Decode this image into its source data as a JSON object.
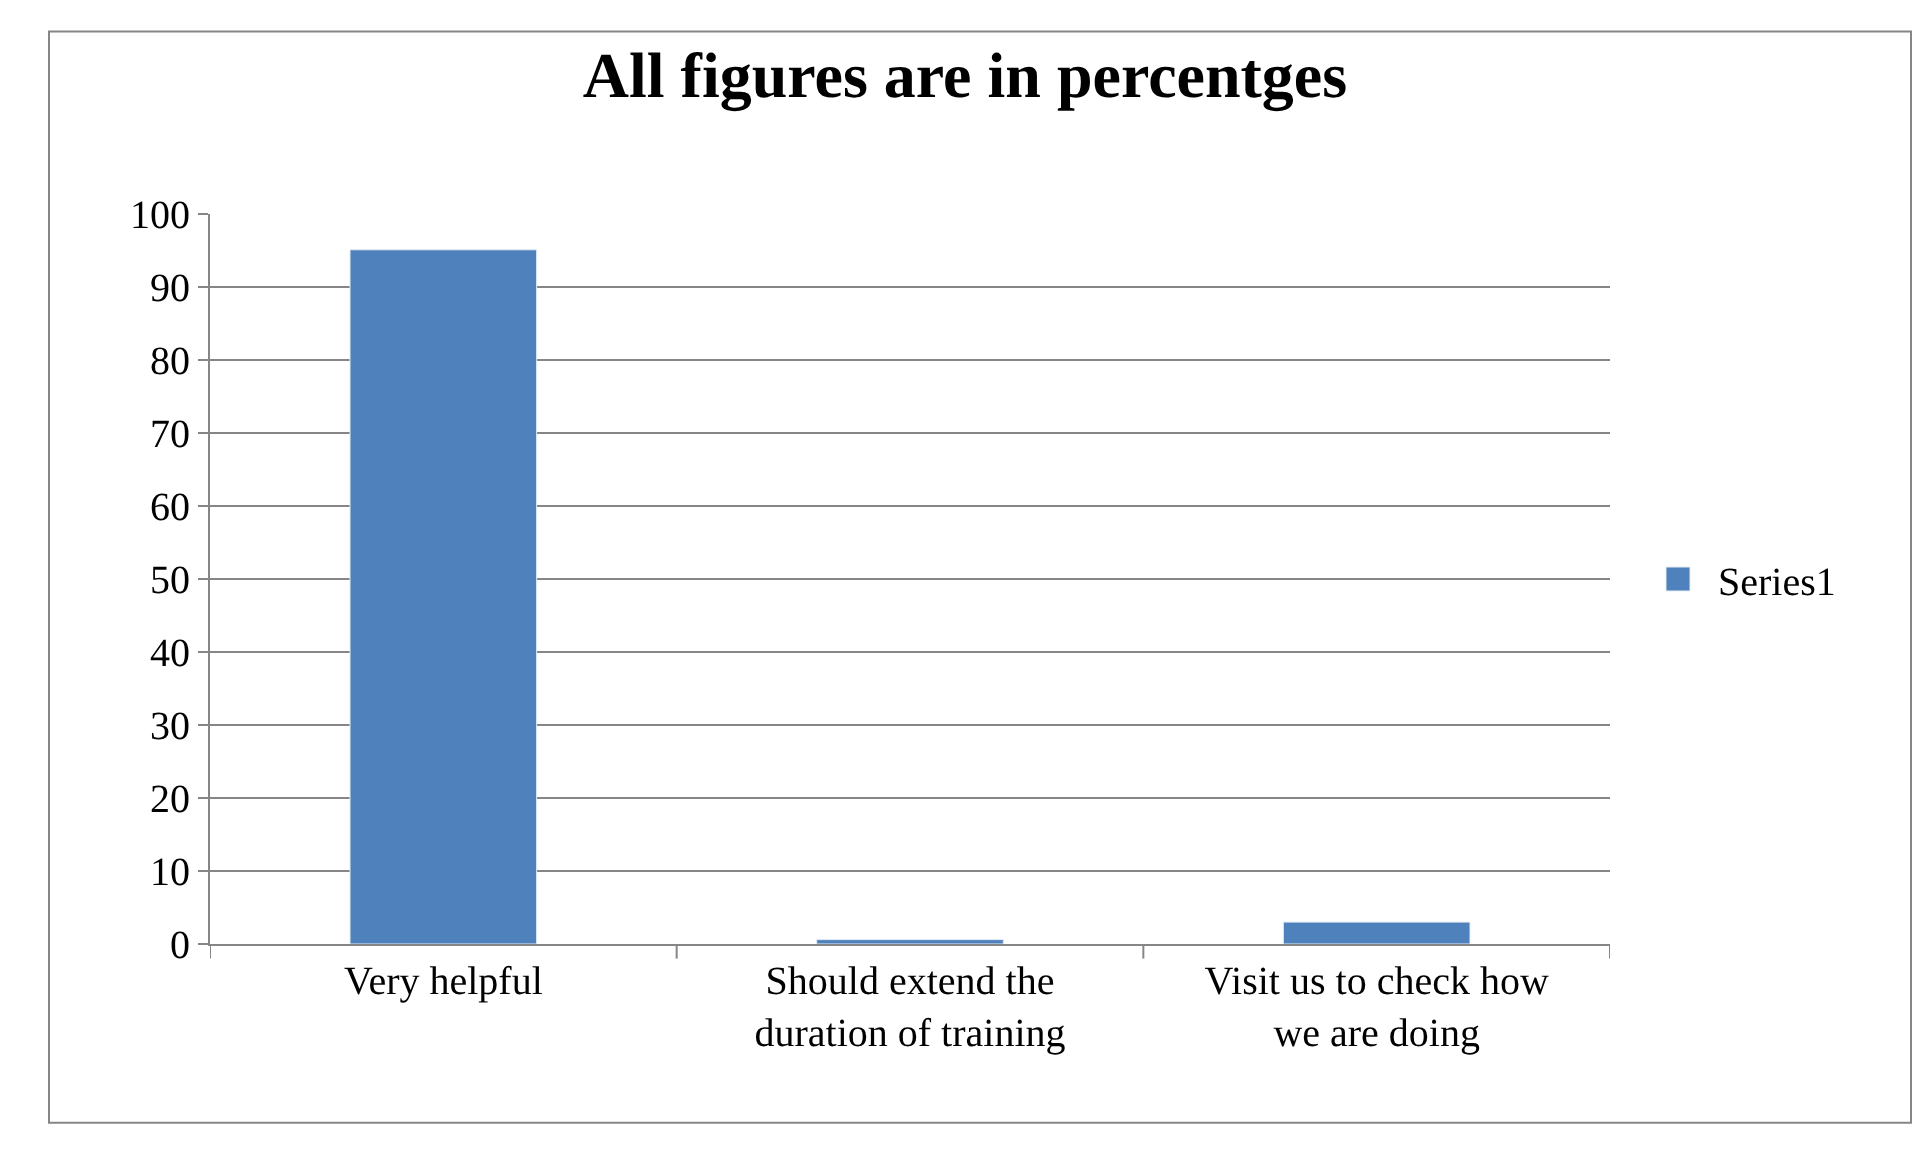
{
  "chart_data": {
    "type": "bar",
    "title": "All figures are in percentges",
    "categories": [
      "Very helpful",
      "Should extend the duration of training",
      "Visit us to check how we are doing"
    ],
    "series": [
      {
        "name": "Series1",
        "color": "#4f81bd",
        "values": [
          95.1,
          0.6,
          3.0
        ]
      }
    ],
    "ylim": [
      0,
      100
    ],
    "yticks": [
      0,
      10,
      20,
      30,
      40,
      50,
      60,
      70,
      80,
      90,
      100
    ],
    "grid": "y",
    "legend": "right"
  }
}
